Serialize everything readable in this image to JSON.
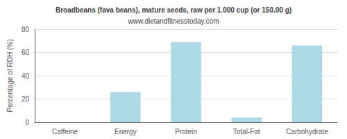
{
  "chart_data": {
    "type": "bar",
    "title": "Broadbeans (fava beans), mature seeds, raw per 1.000 cup (or 150.00 g)",
    "subtitle": "www.dietandfitnesstoday.com",
    "ylabel": "Percentage of RDH (%)",
    "categories": [
      "Caffeine",
      "Energy",
      "Protein",
      "Total-Fat",
      "Carbohydrate"
    ],
    "values": [
      0,
      26,
      69,
      4,
      66
    ],
    "color": "#add8e6",
    "ylim": [
      0,
      80
    ],
    "yticks": [
      0,
      20,
      40,
      60,
      80
    ],
    "grid": true
  }
}
